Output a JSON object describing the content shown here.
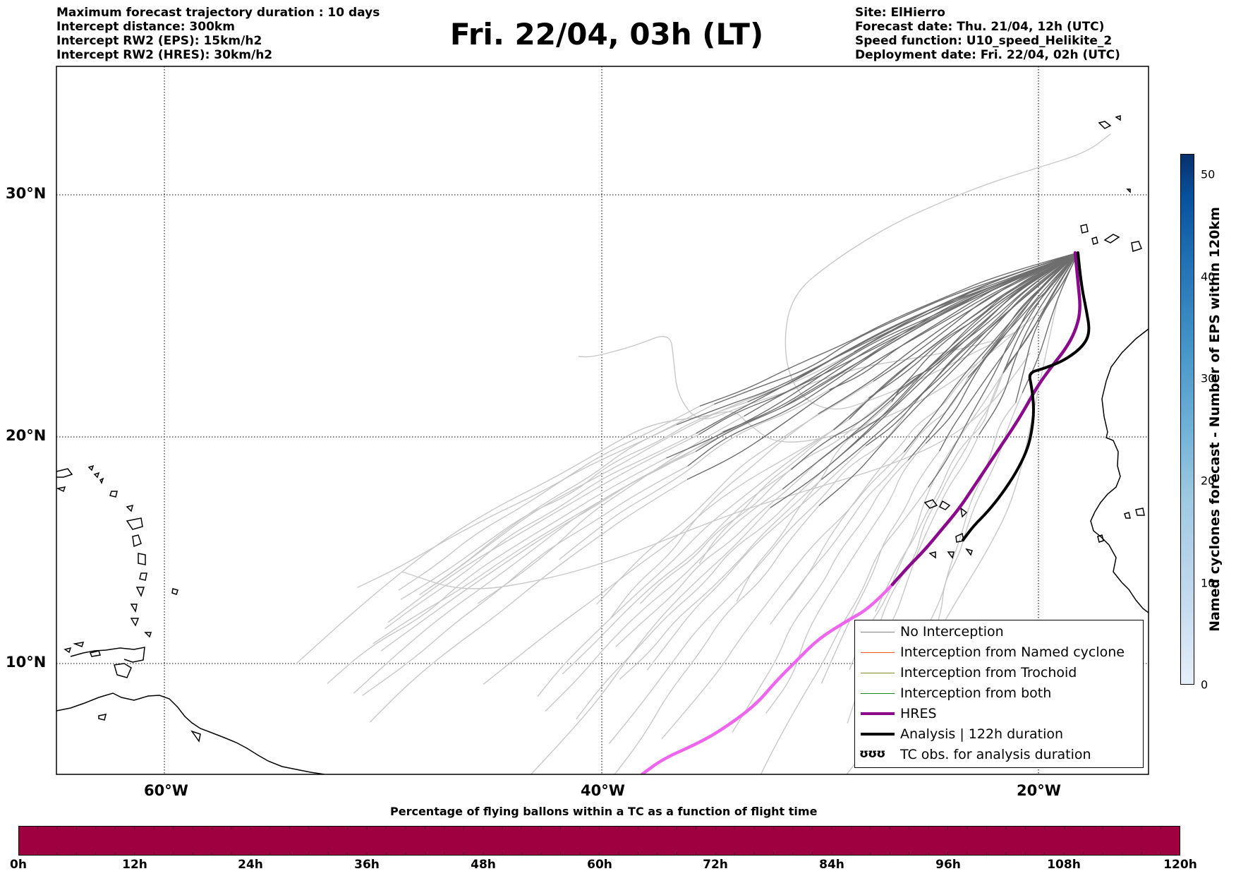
{
  "header": {
    "left_lines": [
      "Maximum forecast trajectory duration : 10 days",
      "Intercept distance: 300km",
      "Intercept RW2 (EPS):  15km/h2",
      "Intercept RW2 (HRES): 30km/h2"
    ],
    "title": "Fri. 22/04, 03h (LT)",
    "right_lines": [
      "Site: ElHierro",
      "Forecast date: Thu. 21/04, 12h (UTC)",
      "Speed function: U10_speed_Helikite_2",
      "Deployment date: Fri. 22/04, 02h (UTC)"
    ]
  },
  "map": {
    "lat_labels": [
      "30°N",
      "20°N",
      "10°N"
    ],
    "lon_labels": [
      "60°W",
      "40°W",
      "20°W"
    ],
    "colors": {
      "eps_far": "#c8c8c8",
      "eps_near": "#6e6e6e",
      "hres_early": "#8b0a8b",
      "hres_late": "#ee66ee",
      "analysis": "#000000",
      "coastline": "#000000"
    }
  },
  "legend": {
    "items": [
      {
        "label": "No Interception",
        "color": "#808080"
      },
      {
        "label": "Interception from Named cyclone",
        "color": "#ff5522"
      },
      {
        "label": "Interception from Trochoid",
        "color": "#888822"
      },
      {
        "label": "Interception from both",
        "color": "#228822"
      },
      {
        "label": "HRES",
        "color": "#8b0a8b"
      },
      {
        "label": "Analysis | 122h duration",
        "color": "#000000"
      },
      {
        "label": "TC obs. for analysis duration",
        "icon": "ʊʊʊ"
      }
    ]
  },
  "bottom_colorbar": {
    "title": "Percentage of flying ballons within a TC as a function of flight time",
    "ticks": [
      "0h",
      "12h",
      "24h",
      "36h",
      "48h",
      "60h",
      "72h",
      "84h",
      "96h",
      "108h",
      "120h"
    ],
    "fill_color": "#9f0040"
  },
  "right_colorbar": {
    "label": "Named cyclones forecast - Number of EPS within 120km",
    "ticks": [
      "0",
      "10",
      "20",
      "30",
      "40",
      "50"
    ]
  }
}
